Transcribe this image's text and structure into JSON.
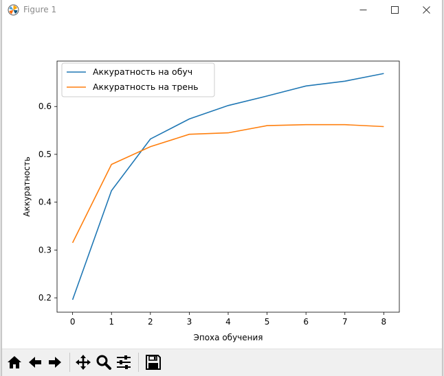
{
  "window": {
    "title": "Figure 1"
  },
  "toolbar": {
    "buttons": [
      "home-icon",
      "back-arrow-icon",
      "forward-arrow-icon",
      "pan-icon",
      "zoom-icon",
      "configure-subplots-icon",
      "save-icon"
    ]
  },
  "colors": {
    "series1": "#1f77b4",
    "series2": "#ff7f0e"
  },
  "chart_data": {
    "type": "line",
    "title": "",
    "xlabel": "Эпоха обучения",
    "ylabel": "Аккуратность",
    "x": [
      0,
      1,
      2,
      3,
      4,
      5,
      6,
      7,
      8
    ],
    "xticks": [
      "0",
      "1",
      "2",
      "3",
      "4",
      "5",
      "6",
      "7",
      "8"
    ],
    "yticks": [
      "0.2",
      "0.3",
      "0.4",
      "0.5",
      "0.6"
    ],
    "xlim": [
      -0.4,
      8.4
    ],
    "ylim": [
      0.17,
      0.695
    ],
    "grid": false,
    "legend_position": "top-left",
    "series": [
      {
        "name": "Аккуратность на обуч",
        "values": [
          0.196,
          0.424,
          0.532,
          0.574,
          0.602,
          0.622,
          0.643,
          0.653,
          0.669
        ]
      },
      {
        "name": "Аккуратность на трень",
        "values": [
          0.315,
          0.479,
          0.516,
          0.542,
          0.545,
          0.56,
          0.562,
          0.562,
          0.558
        ]
      }
    ]
  }
}
